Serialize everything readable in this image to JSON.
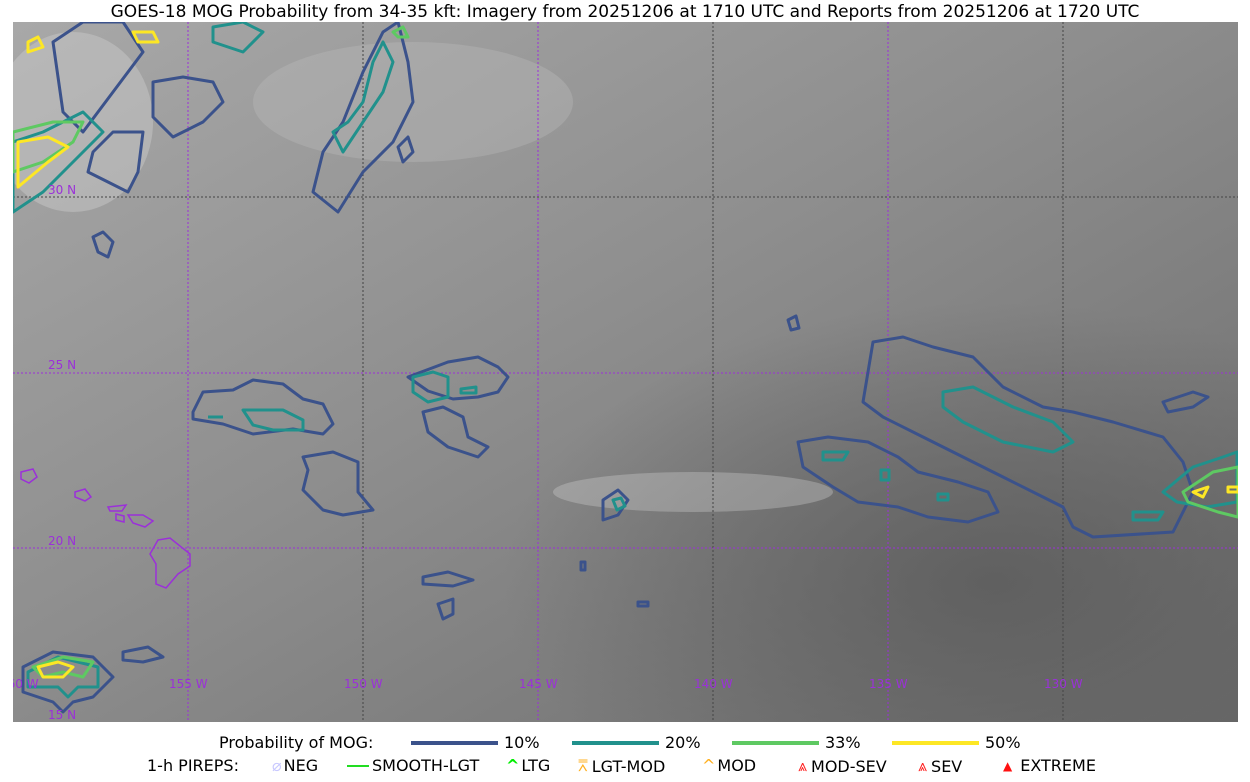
{
  "title": "GOES-18 MOG Probability from 34-35 kft: Imagery from 20251206 at 1710 UTC and Reports from 20251206 at 1720 UTC",
  "map": {
    "longitude_labels": [
      "160 W",
      "155 W",
      "150 W",
      "145 W",
      "140 W",
      "135 W",
      "130 W"
    ],
    "latitude_labels": [
      "30 N",
      "25 N",
      "20 N",
      "15 N"
    ],
    "grid_color": "#9b30d9"
  },
  "legend": {
    "probability_title": "Probability of MOG:",
    "probability_levels": [
      {
        "label": "10%",
        "color": "#3b528b"
      },
      {
        "label": "20%",
        "color": "#21918c"
      },
      {
        "label": "33%",
        "color": "#5ec962"
      },
      {
        "label": "50%",
        "color": "#fde725"
      }
    ],
    "pireps_title": "1-h PIREPS:",
    "pireps": [
      {
        "label": "NEG",
        "color": "#c8c8ff",
        "icon": "neg-icon"
      },
      {
        "label": "SMOOTH-LGT",
        "color": "#22dd22",
        "icon": "line-icon"
      },
      {
        "label": "LTG",
        "color": "#00ee00",
        "icon": "caret-icon"
      },
      {
        "label": "LGT-MOD",
        "color": "#ffb020",
        "icon": "hat-icon"
      },
      {
        "label": "MOD",
        "color": "#ffb020",
        "icon": "caret-icon"
      },
      {
        "label": "MOD-SEV",
        "color": "#ff2020",
        "icon": "double-caret-icon"
      },
      {
        "label": "SEV",
        "color": "#ff2020",
        "icon": "double-caret-icon"
      },
      {
        "label": "EXTREME",
        "color": "#ff1010",
        "icon": "triangle-icon"
      }
    ]
  }
}
